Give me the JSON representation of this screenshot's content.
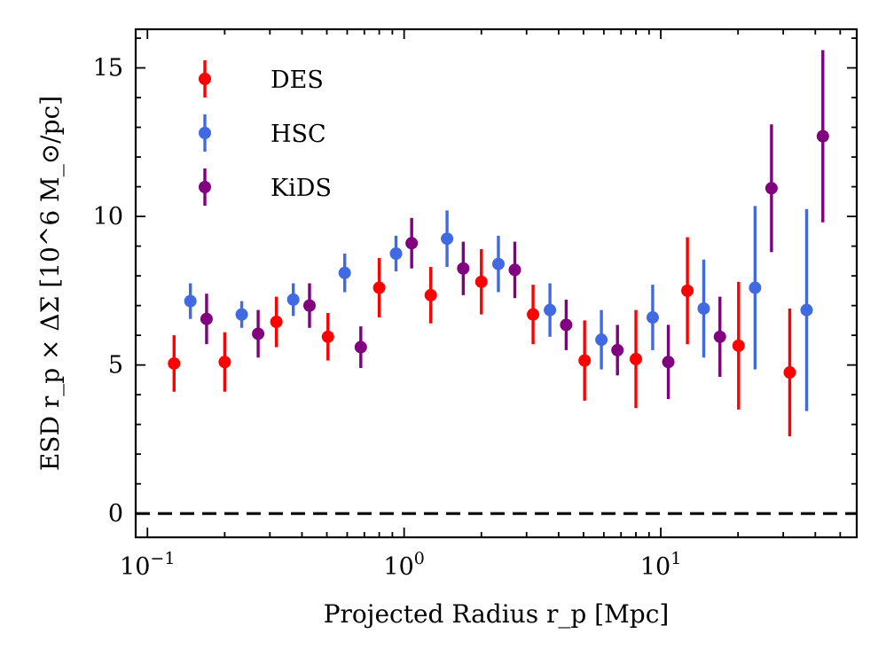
{
  "chart_data": {
    "type": "scatter",
    "xlabel": "Projected Radius r_p [Mpc]",
    "ylabel": "ESD r_p × ΔΣ [10^6 M_⊙/pc]",
    "xscale": "log",
    "xlim": [
      0.09,
      58
    ],
    "ylim": [
      -0.8,
      16.3
    ],
    "x_ticks": [
      {
        "value": 0.1,
        "base": "10",
        "exp": "−1"
      },
      {
        "value": 1,
        "base": "10",
        "exp": "0"
      },
      {
        "value": 10,
        "base": "10",
        "exp": "1"
      }
    ],
    "y_ticks": [
      {
        "value": 0,
        "label": "0"
      },
      {
        "value": 5,
        "label": "5"
      },
      {
        "value": 10,
        "label": "10"
      },
      {
        "value": 15,
        "label": "15"
      }
    ],
    "reference_line": {
      "y": 0,
      "style": "dashed",
      "color": "#000000"
    },
    "legend_position": "upper-left",
    "series": [
      {
        "name": "DES",
        "color": "#ff0000",
        "points": [
          {
            "x": 0.127,
            "y": 5.05,
            "err": 0.95
          },
          {
            "x": 0.2,
            "y": 5.1,
            "err": 1.0
          },
          {
            "x": 0.318,
            "y": 6.45,
            "err": 0.85
          },
          {
            "x": 0.505,
            "y": 5.95,
            "err": 0.8
          },
          {
            "x": 0.8,
            "y": 7.6,
            "err": 1.0
          },
          {
            "x": 1.27,
            "y": 7.35,
            "err": 0.95
          },
          {
            "x": 2.0,
            "y": 7.8,
            "err": 1.1
          },
          {
            "x": 3.18,
            "y": 6.7,
            "err": 1.0
          },
          {
            "x": 5.05,
            "y": 5.15,
            "err": 1.35
          },
          {
            "x": 8.0,
            "y": 5.2,
            "err": 1.65
          },
          {
            "x": 12.7,
            "y": 7.5,
            "err": 1.8
          },
          {
            "x": 20.1,
            "y": 5.65,
            "err": 2.15
          },
          {
            "x": 31.8,
            "y": 4.75,
            "err": 2.15
          }
        ]
      },
      {
        "name": "HSC",
        "color": "#4169e1",
        "points": [
          {
            "x": 0.147,
            "y": 7.15,
            "err": 0.6
          },
          {
            "x": 0.233,
            "y": 6.7,
            "err": 0.45
          },
          {
            "x": 0.37,
            "y": 7.2,
            "err": 0.55
          },
          {
            "x": 0.587,
            "y": 8.1,
            "err": 0.65
          },
          {
            "x": 0.93,
            "y": 8.75,
            "err": 0.6
          },
          {
            "x": 1.47,
            "y": 9.25,
            "err": 0.95
          },
          {
            "x": 2.33,
            "y": 8.4,
            "err": 0.95
          },
          {
            "x": 3.7,
            "y": 6.85,
            "err": 0.9
          },
          {
            "x": 5.87,
            "y": 5.85,
            "err": 1.0
          },
          {
            "x": 9.3,
            "y": 6.6,
            "err": 1.1
          },
          {
            "x": 14.7,
            "y": 6.9,
            "err": 1.65
          },
          {
            "x": 23.3,
            "y": 7.6,
            "err": 2.75
          },
          {
            "x": 37.0,
            "y": 6.85,
            "err": 3.4
          }
        ]
      },
      {
        "name": "KiDS",
        "color": "#800080",
        "points": [
          {
            "x": 0.17,
            "y": 6.55,
            "err": 0.85
          },
          {
            "x": 0.27,
            "y": 6.05,
            "err": 0.8
          },
          {
            "x": 0.428,
            "y": 7.0,
            "err": 0.75
          },
          {
            "x": 0.678,
            "y": 5.6,
            "err": 0.7
          },
          {
            "x": 1.07,
            "y": 9.1,
            "err": 0.85
          },
          {
            "x": 1.7,
            "y": 8.25,
            "err": 0.9
          },
          {
            "x": 2.7,
            "y": 8.2,
            "err": 0.95
          },
          {
            "x": 4.28,
            "y": 6.35,
            "err": 0.85
          },
          {
            "x": 6.78,
            "y": 5.5,
            "err": 0.85
          },
          {
            "x": 10.7,
            "y": 5.1,
            "err": 1.25
          },
          {
            "x": 17.0,
            "y": 5.95,
            "err": 1.35
          },
          {
            "x": 27.0,
            "y": 10.95,
            "err": 2.15
          },
          {
            "x": 42.8,
            "y": 12.7,
            "err": 2.9
          }
        ]
      }
    ]
  }
}
